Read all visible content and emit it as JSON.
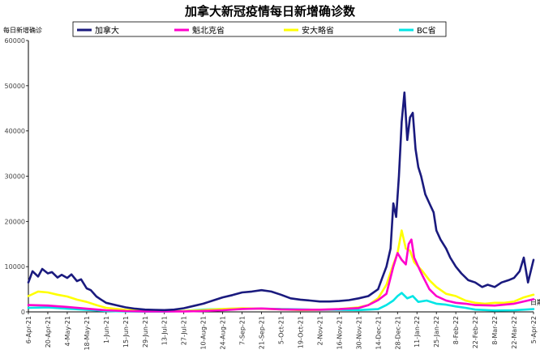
{
  "chart_data": {
    "type": "line",
    "title": "加拿大新冠疫情每日新增确诊数",
    "ylabel": "每日新增确诊",
    "xlabel_end": "日期",
    "ylim": [
      0,
      60000
    ],
    "yticks": [
      0,
      10000,
      20000,
      30000,
      40000,
      50000,
      60000
    ],
    "x_tick_labels": [
      "6-Apr-21",
      "20-Apr-21",
      "4-May-21",
      "18-May-21",
      "1-Jun-21",
      "15-Jun-21",
      "29-Jun-21",
      "13-Jul-21",
      "27-Jul-21",
      "10-Aug-21",
      "24-Aug-21",
      "7-Sep-21",
      "21-Sep-21",
      "5-Oct-21",
      "19-Oct-21",
      "2-Nov-21",
      "16-Nov-21",
      "30-Nov-21",
      "14-Dec-21",
      "28-Dec-21",
      "11-Jan-22",
      "25-Jan-22",
      "8-Feb-22",
      "22-Feb-22",
      "8-Mar-22",
      "22-Mar-22",
      "5-Apr-22"
    ],
    "legend": {
      "placement": "top"
    },
    "series": [
      {
        "name": "加拿大",
        "color": "#1a1a7e",
        "points": [
          [
            "6-Apr-21",
            6500
          ],
          [
            "9-Apr-21",
            9000
          ],
          [
            "13-Apr-21",
            7800
          ],
          [
            "16-Apr-21",
            9500
          ],
          [
            "20-Apr-21",
            8500
          ],
          [
            "23-Apr-21",
            8800
          ],
          [
            "27-Apr-21",
            7600
          ],
          [
            "30-Apr-21",
            8200
          ],
          [
            "4-May-21",
            7500
          ],
          [
            "7-May-21",
            8300
          ],
          [
            "11-May-21",
            6800
          ],
          [
            "14-May-21",
            7200
          ],
          [
            "18-May-21",
            5200
          ],
          [
            "21-May-21",
            4800
          ],
          [
            "25-May-21",
            3400
          ],
          [
            "28-May-21",
            2800
          ],
          [
            "1-Jun-21",
            2000
          ],
          [
            "8-Jun-21",
            1500
          ],
          [
            "15-Jun-21",
            1000
          ],
          [
            "22-Jun-21",
            700
          ],
          [
            "29-Jun-21",
            500
          ],
          [
            "6-Jul-21",
            450
          ],
          [
            "13-Jul-21",
            400
          ],
          [
            "20-Jul-21",
            500
          ],
          [
            "27-Jul-21",
            800
          ],
          [
            "3-Aug-21",
            1300
          ],
          [
            "10-Aug-21",
            1800
          ],
          [
            "17-Aug-21",
            2500
          ],
          [
            "24-Aug-21",
            3200
          ],
          [
            "31-Aug-21",
            3700
          ],
          [
            "7-Sep-21",
            4300
          ],
          [
            "14-Sep-21",
            4500
          ],
          [
            "21-Sep-21",
            4800
          ],
          [
            "28-Sep-21",
            4500
          ],
          [
            "5-Oct-21",
            3800
          ],
          [
            "12-Oct-21",
            3000
          ],
          [
            "19-Oct-21",
            2700
          ],
          [
            "26-Oct-21",
            2500
          ],
          [
            "2-Nov-21",
            2300
          ],
          [
            "9-Nov-21",
            2300
          ],
          [
            "16-Nov-21",
            2400
          ],
          [
            "23-Nov-21",
            2600
          ],
          [
            "30-Nov-21",
            3000
          ],
          [
            "7-Dec-21",
            3500
          ],
          [
            "14-Dec-21",
            5000
          ],
          [
            "17-Dec-21",
            7500
          ],
          [
            "20-Dec-21",
            10000
          ],
          [
            "23-Dec-21",
            14000
          ],
          [
            "25-Dec-21",
            24000
          ],
          [
            "27-Dec-21",
            21000
          ],
          [
            "29-Dec-21",
            30000
          ],
          [
            "31-Dec-21",
            42000
          ],
          [
            "2-Jan-22",
            48500
          ],
          [
            "4-Jan-22",
            38000
          ],
          [
            "6-Jan-22",
            43000
          ],
          [
            "8-Jan-22",
            44000
          ],
          [
            "10-Jan-22",
            36000
          ],
          [
            "12-Jan-22",
            32000
          ],
          [
            "14-Jan-22",
            30000
          ],
          [
            "17-Jan-22",
            26000
          ],
          [
            "20-Jan-22",
            24000
          ],
          [
            "23-Jan-22",
            22000
          ],
          [
            "25-Jan-22",
            18000
          ],
          [
            "28-Jan-22",
            16000
          ],
          [
            "1-Feb-22",
            14000
          ],
          [
            "4-Feb-22",
            12000
          ],
          [
            "8-Feb-22",
            10000
          ],
          [
            "12-Feb-22",
            8500
          ],
          [
            "17-Feb-22",
            7000
          ],
          [
            "22-Feb-22",
            6500
          ],
          [
            "27-Feb-22",
            5500
          ],
          [
            "3-Mar-22",
            6000
          ],
          [
            "8-Mar-22",
            5500
          ],
          [
            "13-Mar-22",
            6500
          ],
          [
            "18-Mar-22",
            7000
          ],
          [
            "22-Mar-22",
            7500
          ],
          [
            "26-Mar-22",
            9000
          ],
          [
            "29-Mar-22",
            12000
          ],
          [
            "1-Apr-22",
            6500
          ],
          [
            "5-Apr-22",
            11500
          ]
        ]
      },
      {
        "name": "魁北克省",
        "color": "#ff00cc",
        "points": [
          [
            "6-Apr-21",
            1500
          ],
          [
            "20-Apr-21",
            1400
          ],
          [
            "4-May-21",
            1100
          ],
          [
            "18-May-21",
            700
          ],
          [
            "1-Jun-21",
            350
          ],
          [
            "15-Jun-21",
            180
          ],
          [
            "29-Jun-21",
            100
          ],
          [
            "13-Jul-21",
            90
          ],
          [
            "27-Jul-21",
            100
          ],
          [
            "10-Aug-21",
            200
          ],
          [
            "24-Aug-21",
            350
          ],
          [
            "7-Sep-21",
            650
          ],
          [
            "21-Sep-21",
            750
          ],
          [
            "5-Oct-21",
            550
          ],
          [
            "19-Oct-21",
            480
          ],
          [
            "2-Nov-21",
            480
          ],
          [
            "16-Nov-21",
            600
          ],
          [
            "30-Nov-21",
            850
          ],
          [
            "7-Dec-21",
            1500
          ],
          [
            "14-Dec-21",
            2600
          ],
          [
            "20-Dec-21",
            4000
          ],
          [
            "25-Dec-21",
            10000
          ],
          [
            "28-Dec-21",
            13000
          ],
          [
            "31-Dec-21",
            11500
          ],
          [
            "3-Jan-22",
            10500
          ],
          [
            "5-Jan-22",
            15000
          ],
          [
            "7-Jan-22",
            16000
          ],
          [
            "9-Jan-22",
            12000
          ],
          [
            "12-Jan-22",
            10000
          ],
          [
            "15-Jan-22",
            8000
          ],
          [
            "20-Jan-22",
            5000
          ],
          [
            "25-Jan-22",
            3500
          ],
          [
            "1-Feb-22",
            2500
          ],
          [
            "8-Feb-22",
            2000
          ],
          [
            "15-Feb-22",
            1800
          ],
          [
            "22-Feb-22",
            1500
          ],
          [
            "8-Mar-22",
            1400
          ],
          [
            "22-Mar-22",
            1800
          ],
          [
            "5-Apr-22",
            2800
          ]
        ]
      },
      {
        "name": "安大略省",
        "color": "#ffff00",
        "points": [
          [
            "6-Apr-21",
            3500
          ],
          [
            "13-Apr-21",
            4500
          ],
          [
            "20-Apr-21",
            4300
          ],
          [
            "27-Apr-21",
            3800
          ],
          [
            "4-May-21",
            3400
          ],
          [
            "11-May-21",
            2700
          ],
          [
            "18-May-21",
            2200
          ],
          [
            "25-May-21",
            1500
          ],
          [
            "1-Jun-21",
            900
          ],
          [
            "15-Jun-21",
            450
          ],
          [
            "29-Jun-21",
            280
          ],
          [
            "13-Jul-21",
            180
          ],
          [
            "27-Jul-21",
            200
          ],
          [
            "10-Aug-21",
            400
          ],
          [
            "24-Aug-21",
            650
          ],
          [
            "7-Sep-21",
            800
          ],
          [
            "21-Sep-21",
            700
          ],
          [
            "5-Oct-21",
            550
          ],
          [
            "19-Oct-21",
            400
          ],
          [
            "2-Nov-21",
            450
          ],
          [
            "16-Nov-21",
            600
          ],
          [
            "30-Nov-21",
            1000
          ],
          [
            "7-Dec-21",
            1500
          ],
          [
            "14-Dec-21",
            3000
          ],
          [
            "20-Dec-21",
            6000
          ],
          [
            "25-Dec-21",
            10500
          ],
          [
            "28-Dec-21",
            13000
          ],
          [
            "31-Dec-21",
            18000
          ],
          [
            "3-Jan-22",
            14000
          ],
          [
            "6-Jan-22",
            13500
          ],
          [
            "9-Jan-22",
            11000
          ],
          [
            "12-Jan-22",
            10000
          ],
          [
            "15-Jan-22",
            9000
          ],
          [
            "20-Jan-22",
            7000
          ],
          [
            "25-Jan-22",
            5500
          ],
          [
            "1-Feb-22",
            4000
          ],
          [
            "8-Feb-22",
            3500
          ],
          [
            "15-Feb-22",
            2500
          ],
          [
            "22-Feb-22",
            2000
          ],
          [
            "1-Mar-22",
            1800
          ],
          [
            "8-Mar-22",
            2000
          ],
          [
            "15-Mar-22",
            2000
          ],
          [
            "22-Mar-22",
            2300
          ],
          [
            "29-Mar-22",
            3200
          ],
          [
            "5-Apr-22",
            3800
          ]
        ]
      },
      {
        "name": "BC省",
        "color": "#00e5e5",
        "points": [
          [
            "6-Apr-21",
            900
          ],
          [
            "20-Apr-21",
            1000
          ],
          [
            "4-May-21",
            700
          ],
          [
            "18-May-21",
            450
          ],
          [
            "1-Jun-21",
            200
          ],
          [
            "15-Jun-21",
            100
          ],
          [
            "29-Jun-21",
            50
          ],
          [
            "13-Jul-21",
            50
          ],
          [
            "27-Jul-21",
            200
          ],
          [
            "10-Aug-21",
            500
          ],
          [
            "24-Aug-21",
            650
          ],
          [
            "7-Sep-21",
            750
          ],
          [
            "21-Sep-21",
            700
          ],
          [
            "5-Oct-21",
            650
          ],
          [
            "19-Oct-21",
            550
          ],
          [
            "2-Nov-21",
            450
          ],
          [
            "16-Nov-21",
            450
          ],
          [
            "30-Nov-21",
            400
          ],
          [
            "14-Dec-21",
            600
          ],
          [
            "20-Dec-21",
            1500
          ],
          [
            "25-Dec-21",
            2500
          ],
          [
            "28-Dec-21",
            3500
          ],
          [
            "31-Dec-21",
            4200
          ],
          [
            "4-Jan-22",
            3000
          ],
          [
            "8-Jan-22",
            3500
          ],
          [
            "12-Jan-22",
            2200
          ],
          [
            "18-Jan-22",
            2500
          ],
          [
            "25-Jan-22",
            1800
          ],
          [
            "1-Feb-22",
            1600
          ],
          [
            "8-Feb-22",
            1200
          ],
          [
            "15-Feb-22",
            900
          ],
          [
            "22-Feb-22",
            500
          ],
          [
            "8-Mar-22",
            300
          ],
          [
            "22-Mar-22",
            350
          ],
          [
            "5-Apr-22",
            600
          ]
        ]
      }
    ]
  }
}
